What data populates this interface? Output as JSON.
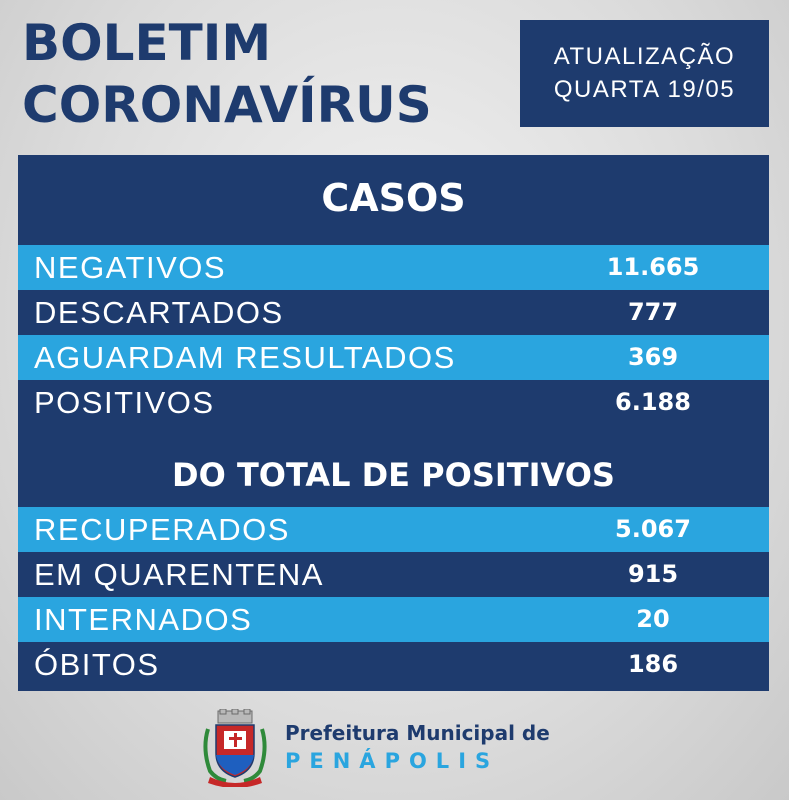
{
  "header": {
    "title_line1": "BOLETIM",
    "title_line2": "CORONAVÍRUS",
    "update_line1": "ATUALIZAÇÃO",
    "update_line2": "QUARTA 19/05"
  },
  "casos": {
    "heading": "CASOS",
    "rows": [
      {
        "label": "NEGATIVOS",
        "value": "11.665"
      },
      {
        "label": "DESCARTADOS",
        "value": "777"
      },
      {
        "label": "AGUARDAM RESULTADOS",
        "value": "369"
      },
      {
        "label": "POSITIVOS",
        "value": "6.188"
      }
    ]
  },
  "positivos": {
    "heading": "DO TOTAL DE POSITIVOS",
    "rows": [
      {
        "label": "RECUPERADOS",
        "value": "5.067"
      },
      {
        "label": "EM QUARENTENA",
        "value": "915"
      },
      {
        "label": "INTERNADOS",
        "value": "20"
      },
      {
        "label": "ÓBITOS",
        "value": "186"
      }
    ]
  },
  "footer": {
    "org_line1": "Prefeitura Municipal de",
    "org_line2": "PENÁPOLIS",
    "crest_icon": "city-coat-of-arms-icon"
  },
  "colors": {
    "navy": "#1e3b6e",
    "light_blue": "#2aa5df",
    "background": "#dcdcdc"
  }
}
